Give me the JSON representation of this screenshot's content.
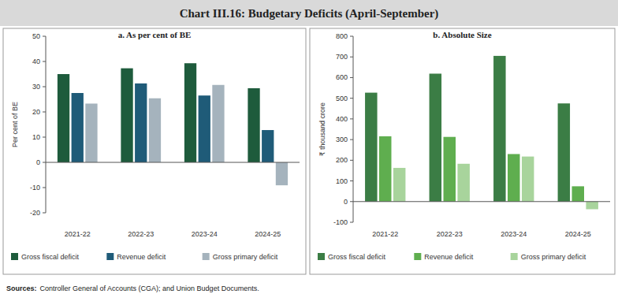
{
  "title": "Chart III.16: Budgetary Deficits (April-September)",
  "source_label": "Sources:",
  "source": "Controller General of Accounts (CGA); and Union Budget Documents.",
  "chart_data": [
    {
      "type": "bar",
      "title": "a. As per cent of BE",
      "ylabel": "Per cent of BE",
      "categories": [
        "2021-22",
        "2022-23",
        "2023-24",
        "2024-25"
      ],
      "series": [
        {
          "name": "Gross fiscal deficit",
          "color": "#1e5b3c",
          "values": [
            35,
            37.3,
            39.3,
            29.4
          ]
        },
        {
          "name": "Revenue deficit",
          "color": "#1f5b78",
          "values": [
            27.5,
            31.3,
            26.5,
            12.8
          ]
        },
        {
          "name": "Gross primary deficit",
          "color": "#a5b3bd",
          "values": [
            23.3,
            25.4,
            30.7,
            -9.1
          ]
        }
      ],
      "ylim": [
        -20,
        50
      ],
      "yticks": [
        -20,
        -10,
        0,
        10,
        20,
        30,
        40,
        50
      ],
      "legend": "bottom"
    },
    {
      "type": "bar",
      "title": "b. Absolute Size",
      "ylabel": "₹ thousand crore",
      "categories": [
        "2021-22",
        "2022-23",
        "2023-24",
        "2024-25"
      ],
      "series": [
        {
          "name": "Gross fiscal deficit",
          "color": "#3b7d45",
          "values": [
            527,
            619,
            705,
            475
          ]
        },
        {
          "name": "Revenue deficit",
          "color": "#5fae4f",
          "values": [
            316,
            313,
            230,
            74
          ]
        },
        {
          "name": "Gross primary deficit",
          "color": "#a8d49c",
          "values": [
            163,
            183,
            218,
            -37
          ]
        }
      ],
      "ylim": [
        -100,
        800
      ],
      "yticks": [
        -100,
        0,
        100,
        200,
        300,
        400,
        500,
        600,
        700,
        800
      ],
      "legend": "bottom"
    }
  ]
}
